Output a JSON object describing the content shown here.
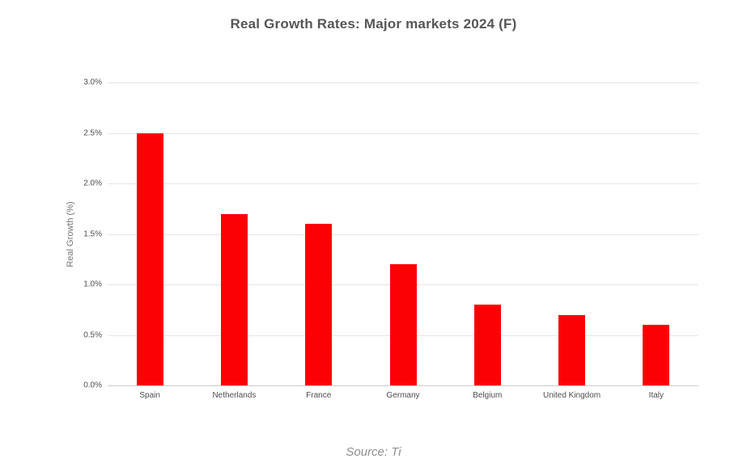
{
  "title": "Real Growth Rates: Major markets 2024 (F)",
  "footer": {
    "source": "Source: Ti"
  },
  "chart_data": {
    "type": "bar",
    "title": "Real Growth Rates: Major markets 2024 (F)",
    "categories": [
      "Spain",
      "Netherlands",
      "France",
      "Germany",
      "Belgium",
      "United Kingdom",
      "Italy"
    ],
    "values": [
      2.5,
      1.7,
      1.6,
      1.2,
      0.8,
      0.7,
      0.6
    ],
    "xlabel": "",
    "ylabel": "Real Growth (%)",
    "ylim": [
      0,
      3.0
    ],
    "ytick_values": [
      0.0,
      0.5,
      1.0,
      1.5,
      2.0,
      2.5,
      3.0
    ],
    "ytick_labels": [
      "0.0%",
      "0.5%",
      "1.0%",
      "1.5%",
      "2.0%",
      "2.5%",
      "3.0%"
    ],
    "grid": true,
    "legend_position": "none",
    "colors": {
      "bar": "#fc0104",
      "gridline": "#e5e5e5",
      "zero_line": "#cccccc",
      "title_text": "#565656",
      "tick_text": "#4d4d4d",
      "source_text": "#8f8f8f"
    }
  }
}
